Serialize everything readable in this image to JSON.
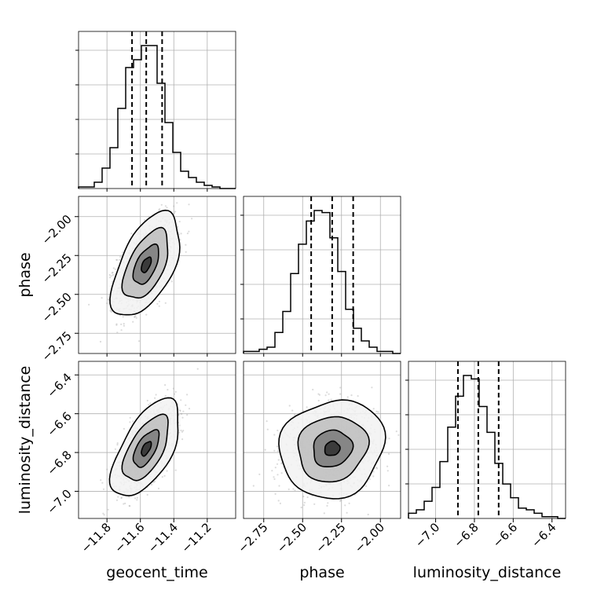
{
  "chart_data": {
    "type": "corner",
    "parameters": [
      "geocent_time",
      "phase",
      "luminosity_distance"
    ],
    "axis_labels": {
      "x": [
        "geocent_time",
        "phase",
        "luminosity_distance"
      ],
      "y": [
        "phase",
        "luminosity_distance"
      ]
    },
    "ranges": {
      "geocent_time": [
        -11.97,
        -11.03
      ],
      "phase": [
        -2.88,
        -1.87
      ],
      "luminosity_distance": [
        -7.14,
        -6.33
      ]
    },
    "ticks": {
      "geocent_time": {
        "values": [
          -11.8,
          -11.6,
          -11.4,
          -11.2
        ],
        "labels": [
          "−11.8",
          "−11.6",
          "−11.4",
          "−11.2"
        ]
      },
      "phase": {
        "values": [
          -2.75,
          -2.5,
          -2.25,
          -2.0
        ],
        "labels": [
          "−2.75",
          "−2.50",
          "−2.25",
          "−2.00"
        ]
      },
      "luminosity_distance": {
        "values": [
          -7.0,
          -6.8,
          -6.6,
          -6.4
        ],
        "labels": [
          "−7.0",
          "−6.8",
          "−6.6",
          "−6.4"
        ]
      }
    },
    "quantiles": {
      "geocent_time": [
        -11.65,
        -11.565,
        -11.47
      ],
      "phase": [
        -2.445,
        -2.31,
        -2.175
      ],
      "luminosity_distance": [
        -6.885,
        -6.78,
        -6.675
      ]
    },
    "histograms": {
      "geocent_time": {
        "bin_edges_range": [
          -11.97,
          -11.03
        ],
        "counts": [
          1,
          1,
          4,
          13,
          26,
          51,
          77,
          82,
          91,
          91,
          67,
          42,
          23,
          11,
          7,
          4,
          2,
          1,
          0,
          0
        ]
      },
      "phase": {
        "bin_edges_range": [
          -2.88,
          -1.87
        ],
        "counts": [
          1,
          1,
          2,
          3,
          10,
          20,
          38,
          52,
          63,
          68,
          67,
          55,
          39,
          21,
          12,
          6,
          3,
          1,
          1,
          0
        ]
      },
      "luminosity_distance": {
        "bin_edges_range": [
          -7.14,
          -6.33
        ],
        "counts": [
          3,
          5,
          10,
          18,
          33,
          53,
          71,
          83,
          81,
          65,
          50,
          32,
          20,
          12,
          6,
          5,
          3,
          1,
          1,
          0
        ]
      }
    },
    "panels_2d": [
      {
        "x": "geocent_time",
        "y": "phase",
        "mean": [
          -11.565,
          -2.31
        ],
        "std": [
          0.085,
          0.14
        ],
        "correlation": 0.55
      },
      {
        "x": "geocent_time",
        "y": "luminosity_distance",
        "mean": [
          -11.565,
          -6.78
        ],
        "std": [
          0.085,
          0.105
        ],
        "correlation": 0.6
      },
      {
        "x": "phase",
        "y": "luminosity_distance",
        "mean": [
          -2.31,
          -6.78
        ],
        "std": [
          0.14,
          0.105
        ],
        "correlation": 0.1
      }
    ],
    "grid": true,
    "colors": {
      "line": "#000000",
      "scatter": "#b0b0b0",
      "grid": "#b0b0b0"
    }
  }
}
